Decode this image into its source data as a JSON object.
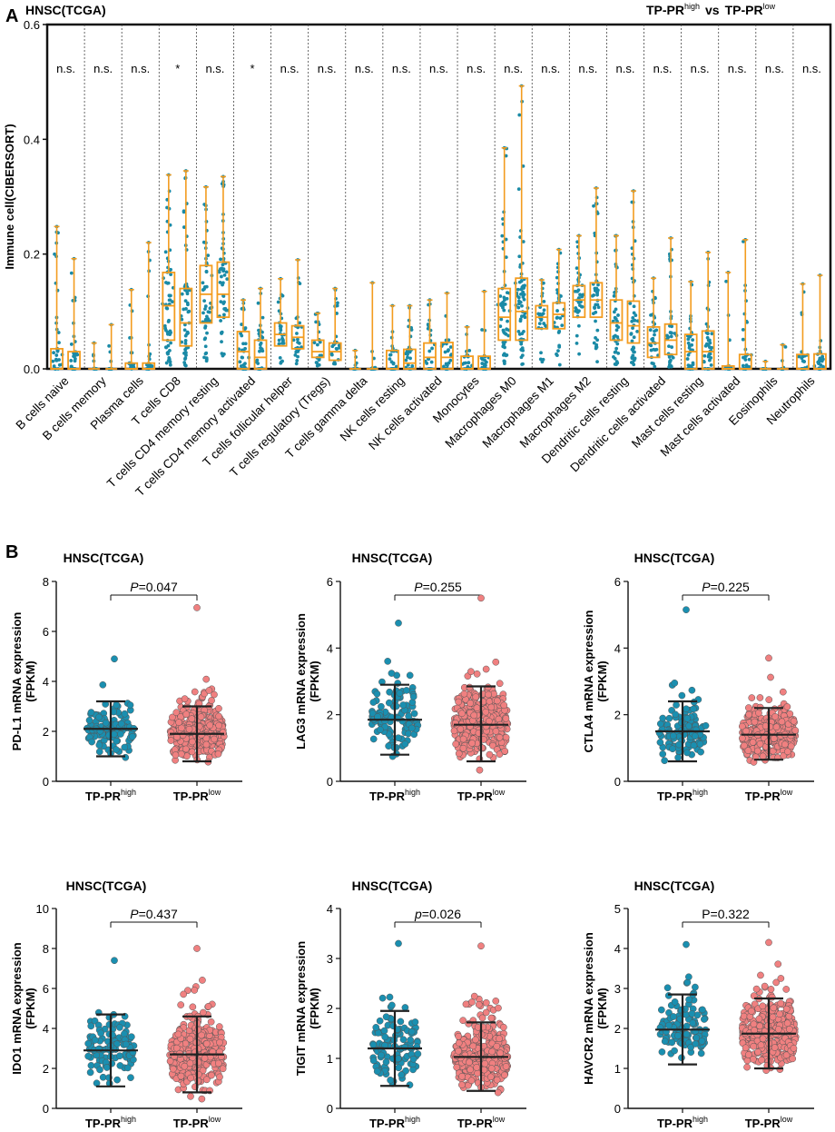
{
  "panel_a": {
    "letter": "A",
    "title": "HNSC(TCGA)",
    "comparison": {
      "high_prefix": "TP-PR",
      "high_sup": "high",
      "vs": "vs",
      "low_prefix": "TP-PR",
      "low_sup": "low"
    },
    "colors": {
      "box": "#f39c1f",
      "dot": "#1a8aa6",
      "text": "#1a1a1a"
    }
  },
  "panel_b": {
    "letter": "B",
    "colors": {
      "high": "#1a8fb0",
      "low": "#f08080",
      "edge": "#555555"
    }
  },
  "chart_data": [
    {
      "type": "box",
      "title": "HNSC(TCGA)",
      "ylabel": "Immune cell(CIBERSORT)",
      "ylim": [
        0,
        0.6
      ],
      "yticks": [
        "0.0",
        "0.2",
        "0.4",
        "0.6"
      ],
      "groups": [
        "TP-PR high",
        "TP-PR low"
      ],
      "categories": [
        {
          "name": "B cells naive",
          "sig": "n.s.",
          "high": {
            "q1": 0.0,
            "med": 0.0,
            "q3": 0.035,
            "max": 0.248
          },
          "low": {
            "q1": 0.0,
            "med": 0.0,
            "q3": 0.03,
            "max": 0.192
          }
        },
        {
          "name": "B cells memory",
          "sig": "n.s.",
          "high": {
            "q1": 0.0,
            "med": 0.0,
            "q3": 0.0,
            "max": 0.045
          },
          "low": {
            "q1": 0.0,
            "med": 0.0,
            "q3": 0.0,
            "max": 0.077
          }
        },
        {
          "name": "Plasma cells",
          "sig": "n.s.",
          "high": {
            "q1": 0.0,
            "med": 0.0,
            "q3": 0.01,
            "max": 0.138
          },
          "low": {
            "q1": 0.0,
            "med": 0.0,
            "q3": 0.01,
            "max": 0.22
          }
        },
        {
          "name": "T cells CD8",
          "sig": "*",
          "high": {
            "q1": 0.05,
            "med": 0.11,
            "q3": 0.168,
            "max": 0.338
          },
          "low": {
            "q1": 0.04,
            "med": 0.08,
            "q3": 0.14,
            "max": 0.345
          }
        },
        {
          "name": "T cells CD4 memory resting",
          "sig": "n.s.",
          "high": {
            "q1": 0.08,
            "med": 0.13,
            "q3": 0.18,
            "max": 0.317
          },
          "low": {
            "q1": 0.09,
            "med": 0.13,
            "q3": 0.186,
            "max": 0.335
          }
        },
        {
          "name": "T cells CD4 memory activated",
          "sig": "*",
          "high": {
            "q1": 0.0,
            "med": 0.03,
            "q3": 0.065,
            "max": 0.12
          },
          "low": {
            "q1": 0.0,
            "med": 0.02,
            "q3": 0.05,
            "max": 0.14
          }
        },
        {
          "name": "T cells follicular helper",
          "sig": "n.s.",
          "high": {
            "q1": 0.04,
            "med": 0.06,
            "q3": 0.08,
            "max": 0.157
          },
          "low": {
            "q1": 0.035,
            "med": 0.055,
            "q3": 0.075,
            "max": 0.19
          }
        },
        {
          "name": "T cells regulatory (Tregs)",
          "sig": "n.s.",
          "high": {
            "q1": 0.02,
            "med": 0.03,
            "q3": 0.05,
            "max": 0.097
          },
          "low": {
            "q1": 0.015,
            "med": 0.03,
            "q3": 0.045,
            "max": 0.14
          }
        },
        {
          "name": "T cells gamma delta",
          "sig": "n.s.",
          "high": {
            "q1": 0.0,
            "med": 0.0,
            "q3": 0.0,
            "max": 0.032
          },
          "low": {
            "q1": 0.0,
            "med": 0.0,
            "q3": 0.0,
            "max": 0.15
          }
        },
        {
          "name": "NK cells resting",
          "sig": "n.s.",
          "high": {
            "q1": 0.0,
            "med": 0.0,
            "q3": 0.032,
            "max": 0.11
          },
          "low": {
            "q1": 0.0,
            "med": 0.01,
            "q3": 0.034,
            "max": 0.11
          }
        },
        {
          "name": "NK cells activated",
          "sig": "n.s.",
          "high": {
            "q1": 0.0,
            "med": 0.02,
            "q3": 0.045,
            "max": 0.12
          },
          "low": {
            "q1": 0.0,
            "med": 0.02,
            "q3": 0.046,
            "max": 0.132
          }
        },
        {
          "name": "Monocytes",
          "sig": "n.s.",
          "high": {
            "q1": 0.0,
            "med": 0.0,
            "q3": 0.022,
            "max": 0.073
          },
          "low": {
            "q1": 0.0,
            "med": 0.0,
            "q3": 0.022,
            "max": 0.135
          }
        },
        {
          "name": "Macrophages M0",
          "sig": "n.s.",
          "high": {
            "q1": 0.05,
            "med": 0.09,
            "q3": 0.14,
            "max": 0.385
          },
          "low": {
            "q1": 0.05,
            "med": 0.1,
            "q3": 0.158,
            "max": 0.493
          }
        },
        {
          "name": "Macrophages M1",
          "sig": "n.s.",
          "high": {
            "q1": 0.07,
            "med": 0.09,
            "q3": 0.11,
            "max": 0.155
          },
          "low": {
            "q1": 0.07,
            "med": 0.095,
            "q3": 0.115,
            "max": 0.208
          }
        },
        {
          "name": "Macrophages M2",
          "sig": "n.s.",
          "high": {
            "q1": 0.09,
            "med": 0.12,
            "q3": 0.145,
            "max": 0.232
          },
          "low": {
            "q1": 0.09,
            "med": 0.12,
            "q3": 0.15,
            "max": 0.315
          }
        },
        {
          "name": "Dendritic cells resting",
          "sig": "n.s.",
          "high": {
            "q1": 0.05,
            "med": 0.08,
            "q3": 0.12,
            "max": 0.232
          },
          "low": {
            "q1": 0.045,
            "med": 0.075,
            "q3": 0.118,
            "max": 0.31
          }
        },
        {
          "name": "Dendritic cells activated",
          "sig": "n.s.",
          "high": {
            "q1": 0.02,
            "med": 0.045,
            "q3": 0.073,
            "max": 0.158
          },
          "low": {
            "q1": 0.025,
            "med": 0.05,
            "q3": 0.078,
            "max": 0.228
          }
        },
        {
          "name": "Mast cells resting",
          "sig": "n.s.",
          "high": {
            "q1": 0.0,
            "med": 0.03,
            "q3": 0.06,
            "max": 0.152
          },
          "low": {
            "q1": 0.0,
            "med": 0.03,
            "q3": 0.066,
            "max": 0.203
          }
        },
        {
          "name": "Mast cells activated",
          "sig": "n.s.",
          "high": {
            "q1": 0.0,
            "med": 0.0,
            "q3": 0.005,
            "max": 0.168
          },
          "low": {
            "q1": 0.0,
            "med": 0.0,
            "q3": 0.025,
            "max": 0.225
          }
        },
        {
          "name": "Eosinophils",
          "sig": "n.s.",
          "high": {
            "q1": 0.0,
            "med": 0.0,
            "q3": 0.0,
            "max": 0.013
          },
          "low": {
            "q1": 0.0,
            "med": 0.0,
            "q3": 0.0,
            "max": 0.042
          }
        },
        {
          "name": "Neutrophils",
          "sig": "n.s.",
          "high": {
            "q1": 0.0,
            "med": 0.0,
            "q3": 0.025,
            "max": 0.148
          },
          "low": {
            "q1": 0.0,
            "med": 0.0,
            "q3": 0.026,
            "max": 0.163
          }
        }
      ]
    },
    {
      "type": "scatter",
      "title": "HNSC(TCGA)",
      "ylabel": "PD-L1 mRNA expression",
      "yunit": "(FPKM)",
      "ylim": [
        0,
        8
      ],
      "yticks": [
        0,
        2,
        4,
        6,
        8
      ],
      "p_label": "P",
      "p_value": "=0.047",
      "groups": [
        {
          "name": "TP-PR",
          "sup": "high",
          "mean": 2.1,
          "sd_low": 1.0,
          "sd_high": 3.2,
          "max": 4.9
        },
        {
          "name": "TP-PR",
          "sup": "low",
          "mean": 1.9,
          "sd_low": 0.8,
          "sd_high": 3.0,
          "max": 6.95
        }
      ]
    },
    {
      "type": "scatter",
      "title": "HNSC(TCGA)",
      "ylabel": "LAG3 mRNA expression",
      "yunit": "(FPKM)",
      "ylim": [
        0,
        6
      ],
      "yticks": [
        0,
        2,
        4,
        6
      ],
      "p_label": "P",
      "p_value": "=0.255",
      "groups": [
        {
          "name": "TP-PR",
          "sup": "high",
          "mean": 1.85,
          "sd_low": 0.8,
          "sd_high": 2.9,
          "max": 4.75
        },
        {
          "name": "TP-PR",
          "sup": "low",
          "mean": 1.7,
          "sd_low": 0.6,
          "sd_high": 2.85,
          "max": 5.5
        }
      ]
    },
    {
      "type": "scatter",
      "title": "HNSC(TCGA)",
      "ylabel": "CTLA4 mRNA expression",
      "yunit": "(FPKM)",
      "ylim": [
        0,
        6
      ],
      "yticks": [
        0,
        2,
        4,
        6
      ],
      "p_label": "P",
      "p_value": "=0.225",
      "groups": [
        {
          "name": "TP-PR",
          "sup": "high",
          "mean": 1.5,
          "sd_low": 0.6,
          "sd_high": 2.4,
          "max": 5.15
        },
        {
          "name": "TP-PR",
          "sup": "low",
          "mean": 1.4,
          "sd_low": 0.65,
          "sd_high": 2.2,
          "max": 3.7
        }
      ]
    },
    {
      "type": "scatter",
      "title": "HNSC(TCGA)",
      "ylabel": "IDO1 mRNA expression",
      "yunit": "(FPKM)",
      "ylim": [
        0,
        10
      ],
      "yticks": [
        0,
        2,
        4,
        6,
        8,
        10
      ],
      "p_label": "P",
      "p_value": "=0.437",
      "groups": [
        {
          "name": "TP-PR",
          "sup": "high",
          "mean": 2.9,
          "sd_low": 1.1,
          "sd_high": 4.7,
          "max": 7.4
        },
        {
          "name": "TP-PR",
          "sup": "low",
          "mean": 2.7,
          "sd_low": 0.8,
          "sd_high": 4.6,
          "max": 8.0
        }
      ]
    },
    {
      "type": "scatter",
      "title": "HNSC(TCGA)",
      "ylabel": "TIGIT mRNA expression",
      "yunit": "(FPKM)",
      "ylim": [
        0,
        4
      ],
      "yticks": [
        0,
        1,
        2,
        3,
        4
      ],
      "p_label": "p",
      "p_value": "=0.026",
      "groups": [
        {
          "name": "TP-PR",
          "sup": "high",
          "mean": 1.2,
          "sd_low": 0.45,
          "sd_high": 1.95,
          "max": 3.3
        },
        {
          "name": "TP-PR",
          "sup": "low",
          "mean": 1.03,
          "sd_low": 0.35,
          "sd_high": 1.72,
          "max": 3.25
        }
      ]
    },
    {
      "type": "scatter",
      "title": "HNSC(TCGA)",
      "ylabel": "HAVCR2 mRNA expression",
      "yunit": "(FPKM)",
      "ylim": [
        0,
        5
      ],
      "yticks": [
        0,
        1,
        2,
        3,
        4,
        5
      ],
      "p_label": "",
      "p_value": "P=0.322",
      "groups": [
        {
          "name": "TP-PR",
          "sup": "high",
          "mean": 1.97,
          "sd_low": 1.1,
          "sd_high": 2.85,
          "max": 4.1
        },
        {
          "name": "TP-PR",
          "sup": "low",
          "mean": 1.87,
          "sd_low": 1.0,
          "sd_high": 2.75,
          "max": 4.15
        }
      ]
    }
  ]
}
